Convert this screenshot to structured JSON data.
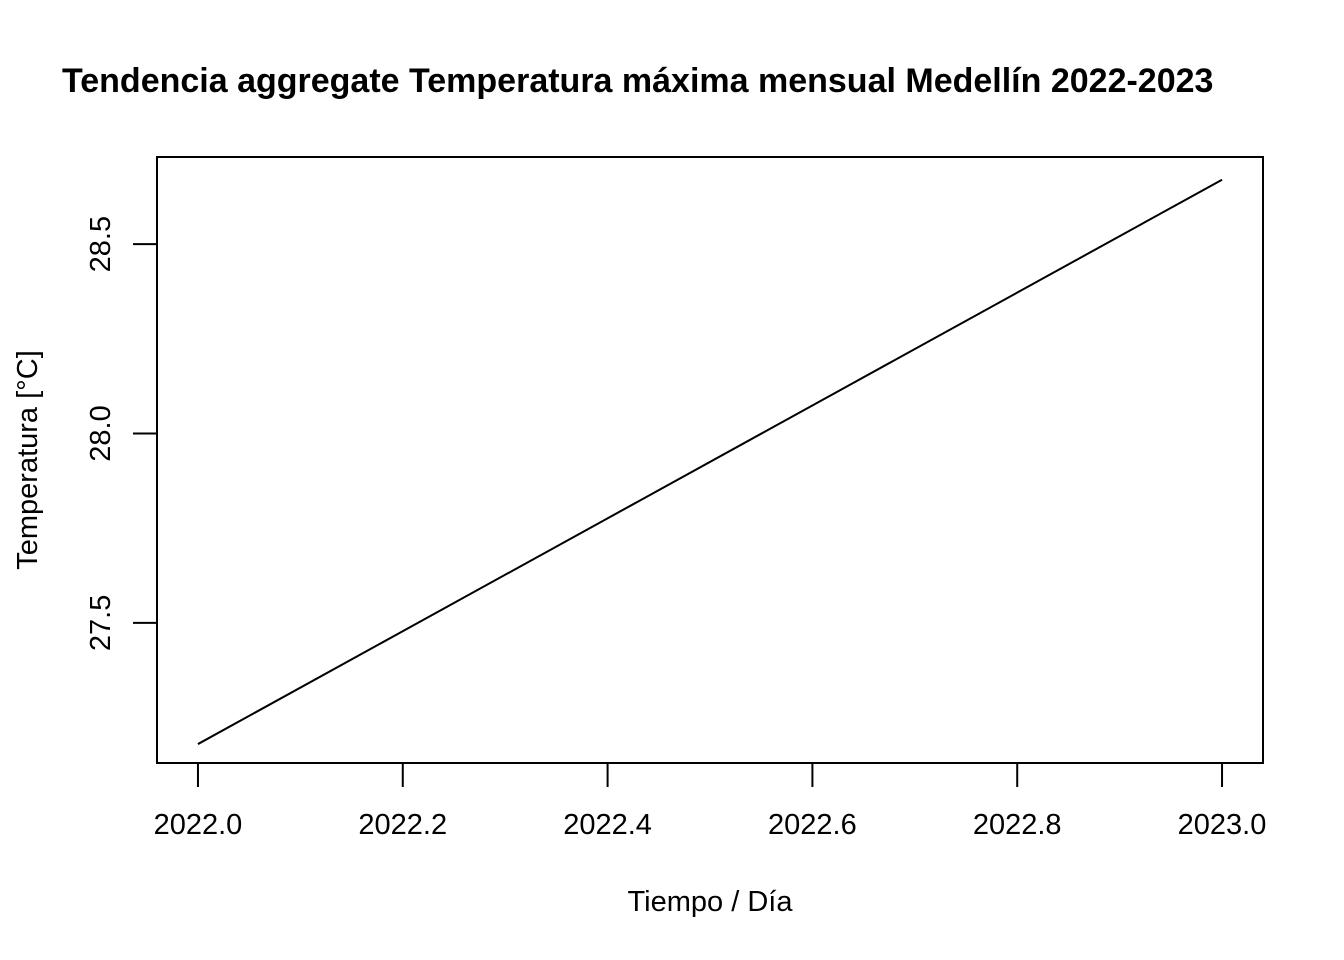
{
  "chart_data": {
    "type": "line",
    "title": "Tendencia aggregate Temperatura máxima mensual Medellín 2022-2023",
    "xlabel": "Tiempo / Día",
    "ylabel": "Temperatura [°C]",
    "xlim": [
      1.96,
      3.04
    ],
    "ylim": [
      27.13,
      28.73
    ],
    "x_ticks": [
      2,
      2.2,
      2.4,
      2.6,
      2.8,
      3
    ],
    "x_tick_labels": [
      "2022.0",
      "2022.2",
      "2022.4",
      "2022.6",
      "2022.8",
      "2023.0"
    ],
    "y_ticks": [
      27.5,
      28,
      28.5
    ],
    "y_tick_labels": [
      "27.5",
      "28.0",
      "28.5"
    ],
    "grid": false,
    "legend": "none",
    "series": [
      {
        "color": "#000000",
        "x": [
          2,
          3
        ],
        "y": [
          27.18,
          28.67
        ]
      }
    ]
  }
}
